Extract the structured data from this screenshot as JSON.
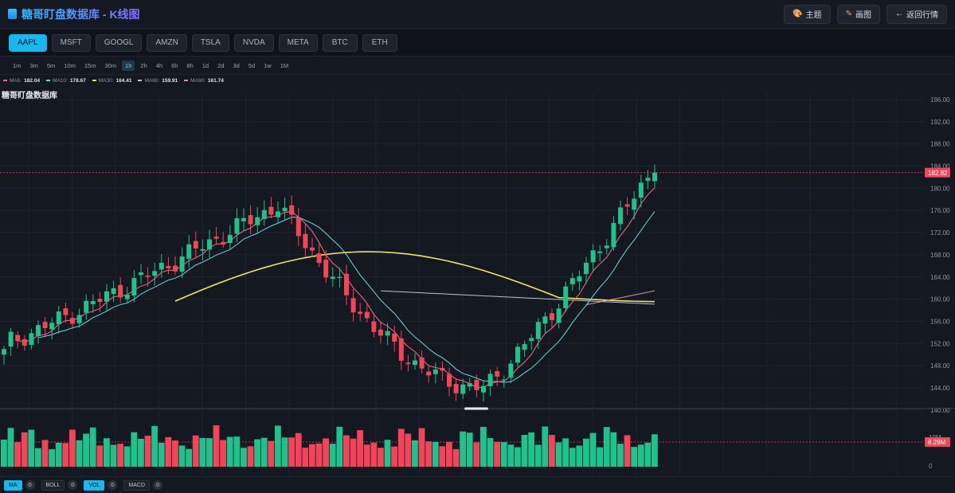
{
  "header": {
    "title": "糖哥盯盘数据库 - K线图",
    "buttons": [
      {
        "label": "主题",
        "icon": "palette-icon"
      },
      {
        "label": "画图",
        "icon": "pencil-icon"
      },
      {
        "label": "返回行情",
        "icon": "arrow-left-icon"
      }
    ]
  },
  "symbols": [
    "AAPL",
    "MSFT",
    "GOOGL",
    "AMZN",
    "TSLA",
    "NVDA",
    "META",
    "BTC",
    "ETH"
  ],
  "active_symbol": "AAPL",
  "intervals": [
    "1m",
    "3m",
    "5m",
    "10m",
    "15m",
    "30m",
    "1h",
    "2h",
    "4h",
    "6h",
    "8h",
    "1d",
    "2d",
    "3d",
    "5d",
    "1w",
    "1M"
  ],
  "active_interval": "1h",
  "ma_legend": [
    {
      "label": "MA5:",
      "value": "182.04",
      "color": "#ff6b8a"
    },
    {
      "label": "MA10:",
      "value": "178.67",
      "color": "#6fd6e0"
    },
    {
      "label": "MA30:",
      "value": "164.41",
      "color": "#f3e36a"
    },
    {
      "label": "MA60:",
      "value": "159.91",
      "color": "#b8c4d6"
    },
    {
      "label": "MA90:",
      "value": "161.74",
      "color": "#d98fb0"
    }
  ],
  "watermark": "糖哥盯盘数据库",
  "chart_data": {
    "type": "candlestick",
    "y_axis_ticks": [
      "196.00",
      "192.00",
      "188.00",
      "184.00",
      "180.00",
      "176.00",
      "172.00",
      "168.00",
      "164.00",
      "160.00",
      "156.00",
      "152.00",
      "148.00",
      "144.00",
      "140.00"
    ],
    "ylim": [
      140,
      197
    ],
    "last_price": "182.82",
    "volume_axis_ticks": [
      "10M",
      "0"
    ],
    "last_volume": "8.29M",
    "colors": {
      "up": "#1fc28a",
      "down": "#f4445a",
      "ma5": "#ff6b8a",
      "ma10": "#6fd6e0",
      "ma30": "#f3e36a",
      "ma60": "#b8c4d6",
      "ma90": "#d98fb0"
    }
  },
  "indicators": [
    {
      "label": "MA",
      "active": true
    },
    {
      "label": "BOLL",
      "active": false
    },
    {
      "label": "VOL",
      "active": true
    },
    {
      "label": "MACD",
      "active": false
    }
  ]
}
